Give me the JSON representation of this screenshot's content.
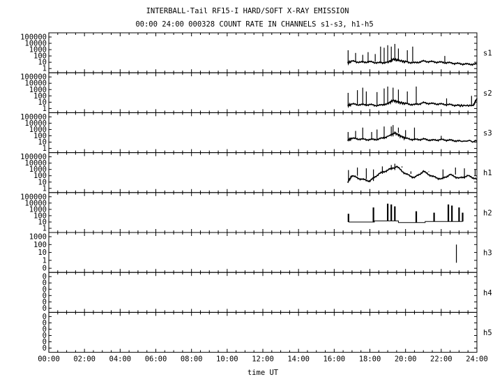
{
  "title": "INTERBALL-Tail RF15-I HARD/SOFT X-RAY EMISSION",
  "subtitle": "00:00 24:00 000328  COUNT RATE IN CHANNELS s1-s3, h1-h5",
  "colors": {
    "background": "#ffffff",
    "ink": "#000000"
  },
  "chart_data": {
    "type": "line",
    "xlabel": "time UT",
    "x_ticks": [
      "00:00",
      "02:00",
      "04:00",
      "06:00",
      "08:00",
      "10:00",
      "12:00",
      "14:00",
      "16:00",
      "18:00",
      "20:00",
      "22:00",
      "24:00"
    ],
    "xlim_hours": [
      0,
      24
    ],
    "y_scale": "log",
    "grid": false,
    "panels": [
      {
        "name": "s1",
        "y_ticks": [
          "100000",
          "10000",
          "1000",
          "100",
          "10",
          "1"
        ],
        "baseline": [
          [
            16.75,
            8
          ],
          [
            17,
            15
          ],
          [
            17.5,
            10
          ],
          [
            18,
            12
          ],
          [
            18.5,
            8
          ],
          [
            19,
            10
          ],
          [
            19.3,
            30
          ],
          [
            19.6,
            20
          ],
          [
            20,
            12
          ],
          [
            20.5,
            8
          ],
          [
            21,
            15
          ],
          [
            21.5,
            12
          ],
          [
            22,
            10
          ],
          [
            22.5,
            8
          ],
          [
            23,
            6
          ],
          [
            23.5,
            5
          ],
          [
            24,
            5
          ]
        ],
        "spikes": [
          [
            16.78,
            800
          ],
          [
            17.2,
            300
          ],
          [
            17.6,
            150
          ],
          [
            17.9,
            400
          ],
          [
            18.3,
            200
          ],
          [
            18.6,
            3000
          ],
          [
            18.8,
            2000
          ],
          [
            19.0,
            5000
          ],
          [
            19.2,
            3000
          ],
          [
            19.4,
            8000
          ],
          [
            19.6,
            1500
          ],
          [
            20.1,
            800
          ],
          [
            20.4,
            3000
          ],
          [
            22.2,
            100
          ]
        ]
      },
      {
        "name": "s2",
        "y_ticks": [
          "100000",
          "10000",
          "1000",
          "100",
          "10",
          "1"
        ],
        "baseline": [
          [
            16.75,
            3
          ],
          [
            17,
            5
          ],
          [
            17.5,
            4
          ],
          [
            18,
            4
          ],
          [
            18.5,
            3
          ],
          [
            19,
            6
          ],
          [
            19.3,
            20
          ],
          [
            19.6,
            10
          ],
          [
            20,
            6
          ],
          [
            20.5,
            4
          ],
          [
            21,
            8
          ],
          [
            21.5,
            6
          ],
          [
            22,
            5
          ],
          [
            22.5,
            4
          ],
          [
            23,
            3
          ],
          [
            23.8,
            3
          ],
          [
            24,
            40
          ]
        ],
        "spikes": [
          [
            16.78,
            300
          ],
          [
            17.3,
            800
          ],
          [
            17.6,
            2000
          ],
          [
            17.8,
            500
          ],
          [
            18.4,
            400
          ],
          [
            18.8,
            1500
          ],
          [
            19.0,
            3000
          ],
          [
            19.3,
            2000
          ],
          [
            19.6,
            1000
          ],
          [
            20.1,
            500
          ],
          [
            20.6,
            3000
          ],
          [
            22.3,
            40
          ],
          [
            23.7,
            100
          ]
        ]
      },
      {
        "name": "s3",
        "y_ticks": [
          "100000",
          "10000",
          "1000",
          "100",
          "10",
          "1"
        ],
        "baseline": [
          [
            16.75,
            20
          ],
          [
            17,
            40
          ],
          [
            17.5,
            30
          ],
          [
            18,
            25
          ],
          [
            18.5,
            30
          ],
          [
            19,
            80
          ],
          [
            19.4,
            300
          ],
          [
            19.7,
            100
          ],
          [
            20,
            40
          ],
          [
            20.5,
            25
          ],
          [
            21,
            30
          ],
          [
            21.5,
            20
          ],
          [
            22,
            25
          ],
          [
            22.5,
            20
          ],
          [
            23,
            15
          ],
          [
            24,
            15
          ]
        ],
        "spikes": [
          [
            16.78,
            400
          ],
          [
            17.2,
            600
          ],
          [
            17.6,
            2000
          ],
          [
            18.1,
            400
          ],
          [
            18.4,
            1000
          ],
          [
            18.8,
            3000
          ],
          [
            19.2,
            3000
          ],
          [
            19.3,
            5000
          ],
          [
            19.6,
            2000
          ],
          [
            20.0,
            800
          ],
          [
            20.5,
            2000
          ],
          [
            22.0,
            100
          ]
        ]
      },
      {
        "name": "h1",
        "y_ticks": [
          "100000",
          "10000",
          "1000",
          "100",
          "10",
          "1"
        ],
        "baseline": [
          [
            16.75,
            10
          ],
          [
            17,
            100
          ],
          [
            17.5,
            30
          ],
          [
            18,
            15
          ],
          [
            18.5,
            200
          ],
          [
            19,
            800
          ],
          [
            19.5,
            3000
          ],
          [
            20,
            200
          ],
          [
            20.5,
            50
          ],
          [
            21,
            500
          ],
          [
            21.5,
            80
          ],
          [
            22,
            30
          ],
          [
            22.5,
            150
          ],
          [
            23,
            40
          ],
          [
            23.5,
            100
          ],
          [
            24,
            30
          ]
        ],
        "spikes": [
          [
            16.8,
            800
          ],
          [
            17.3,
            2000
          ],
          [
            17.8,
            1500
          ],
          [
            18.2,
            1000
          ],
          [
            18.7,
            3000
          ],
          [
            19.2,
            5000
          ],
          [
            19.4,
            8000
          ],
          [
            19.8,
            2000
          ],
          [
            20.3,
            500
          ],
          [
            21.3,
            400
          ],
          [
            22.1,
            1000
          ],
          [
            22.8,
            2000
          ],
          [
            23.3,
            1500
          ],
          [
            23.9,
            1000
          ]
        ]
      },
      {
        "name": "h2",
        "y_ticks": [
          "100000",
          "10000",
          "1000",
          "100",
          "10",
          "1"
        ],
        "steps": [
          [
            16.8,
            10
          ],
          [
            18.2,
            10
          ],
          [
            18.25,
            15
          ],
          [
            19.5,
            15
          ],
          [
            19.6,
            8
          ],
          [
            21,
            8
          ],
          [
            21.1,
            12
          ],
          [
            22.4,
            12
          ],
          [
            23.2,
            12
          ]
        ],
        "spikes": [
          [
            16.8,
            200
          ],
          [
            18.2,
            2000
          ],
          [
            19.0,
            8000
          ],
          [
            19.2,
            6000
          ],
          [
            19.4,
            3000
          ],
          [
            20.6,
            500
          ],
          [
            21.6,
            300
          ],
          [
            22.4,
            6000
          ],
          [
            22.6,
            4000
          ],
          [
            23.0,
            2000
          ],
          [
            23.2,
            300
          ]
        ]
      },
      {
        "name": "h3",
        "y_ticks": [
          "1000",
          "100",
          "10",
          "1",
          "0"
        ],
        "spikes": [
          [
            22.85,
            100
          ]
        ]
      },
      {
        "name": "h4",
        "y_ticks": [
          "0",
          "0",
          "0",
          "0",
          "0",
          "0"
        ],
        "spikes": []
      },
      {
        "name": "h5",
        "y_ticks": [
          "0",
          "0",
          "0",
          "0",
          "0",
          "0"
        ],
        "spikes": []
      }
    ]
  }
}
